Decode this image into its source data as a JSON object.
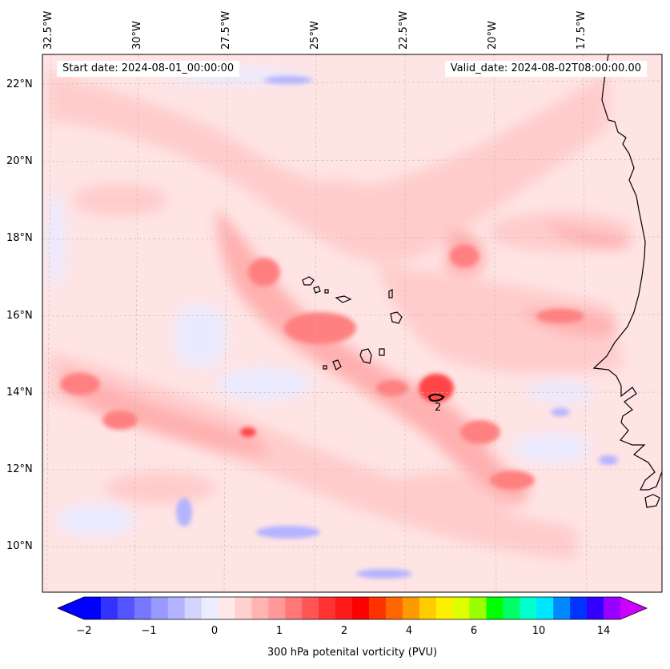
{
  "map": {
    "start_date_label": "Start date: 2024-08-01_00:00:00",
    "valid_date_label": "Valid_date: 2024-08-02T08:00:00.00",
    "contour_label": "2",
    "longitude_labels": [
      "32.5°W",
      "30°W",
      "27.5°W",
      "25°W",
      "22.5°W",
      "20°W",
      "17.5°W"
    ],
    "latitude_labels": [
      "22°N",
      "20°N",
      "18°N",
      "16°N",
      "14°N",
      "12°N",
      "10°N"
    ]
  },
  "colorbar": {
    "title": "300 hPa potenital vorticity (PVU)",
    "tick_labels": [
      "−2",
      "−1",
      "0",
      "1",
      "2",
      "4",
      "6",
      "10",
      "14"
    ],
    "colors": [
      "#0000ff",
      "#3333ff",
      "#5555ff",
      "#7777ff",
      "#9999ff",
      "#b3b3ff",
      "#d4d4ff",
      "#ececff",
      "#ffe8e8",
      "#ffd0d0",
      "#ffb3b3",
      "#ff9999",
      "#ff7777",
      "#ff5555",
      "#ff3333",
      "#ff1a1a",
      "#ff0000",
      "#ff3300",
      "#ff6600",
      "#ff9900",
      "#ffcc00",
      "#ffee00",
      "#ddff00",
      "#99ff00",
      "#00ff00",
      "#00ff66",
      "#00ffcc",
      "#00e5ff",
      "#0088ff",
      "#0033ff",
      "#3300ff",
      "#9900ff"
    ],
    "under_color": "#0000ff",
    "over_color": "#cc00ff"
  }
}
